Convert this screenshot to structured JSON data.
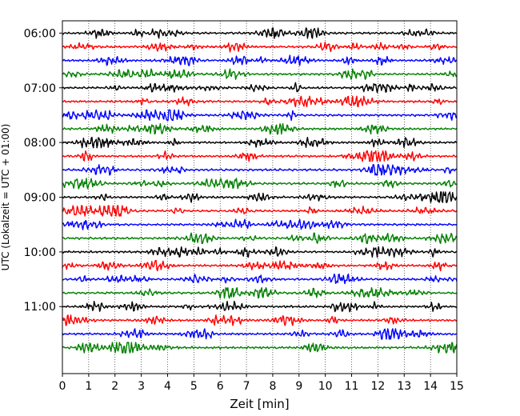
{
  "chart_data": {
    "type": "line",
    "title": "",
    "xlabel": "Zeit  [min]",
    "ylabel": "UTC (Lokalzeit = UTC + 01:00)",
    "xlim": [
      0,
      15
    ],
    "ylim": [
      5.775,
      12.225
    ],
    "y_inverted": true,
    "x_ticks": [
      "0",
      "1",
      "2",
      "3",
      "4",
      "5",
      "6",
      "7",
      "8",
      "9",
      "10",
      "11",
      "12",
      "13",
      "14",
      "15"
    ],
    "y_ticks": [
      {
        "label": "06:00",
        "value": 6
      },
      {
        "label": "07:00",
        "value": 7
      },
      {
        "label": "08:00",
        "value": 8
      },
      {
        "label": "09:00",
        "value": 9
      },
      {
        "label": "10:00",
        "value": 10
      },
      {
        "label": "11:00",
        "value": 11
      }
    ],
    "x_grid": true,
    "y_grid": false,
    "trace_interval_min": 15,
    "trace_colors": [
      "#000000",
      "#ff0000",
      "#0000ff",
      "#008000"
    ],
    "trace_start_hours": [
      6.0,
      6.25,
      6.5,
      6.75,
      7.0,
      7.25,
      7.5,
      7.75,
      8.0,
      8.25,
      8.5,
      8.75,
      9.0,
      9.25,
      9.5,
      9.75,
      10.0,
      10.25,
      10.5,
      10.75,
      11.0,
      11.25,
      11.5,
      11.75
    ]
  }
}
